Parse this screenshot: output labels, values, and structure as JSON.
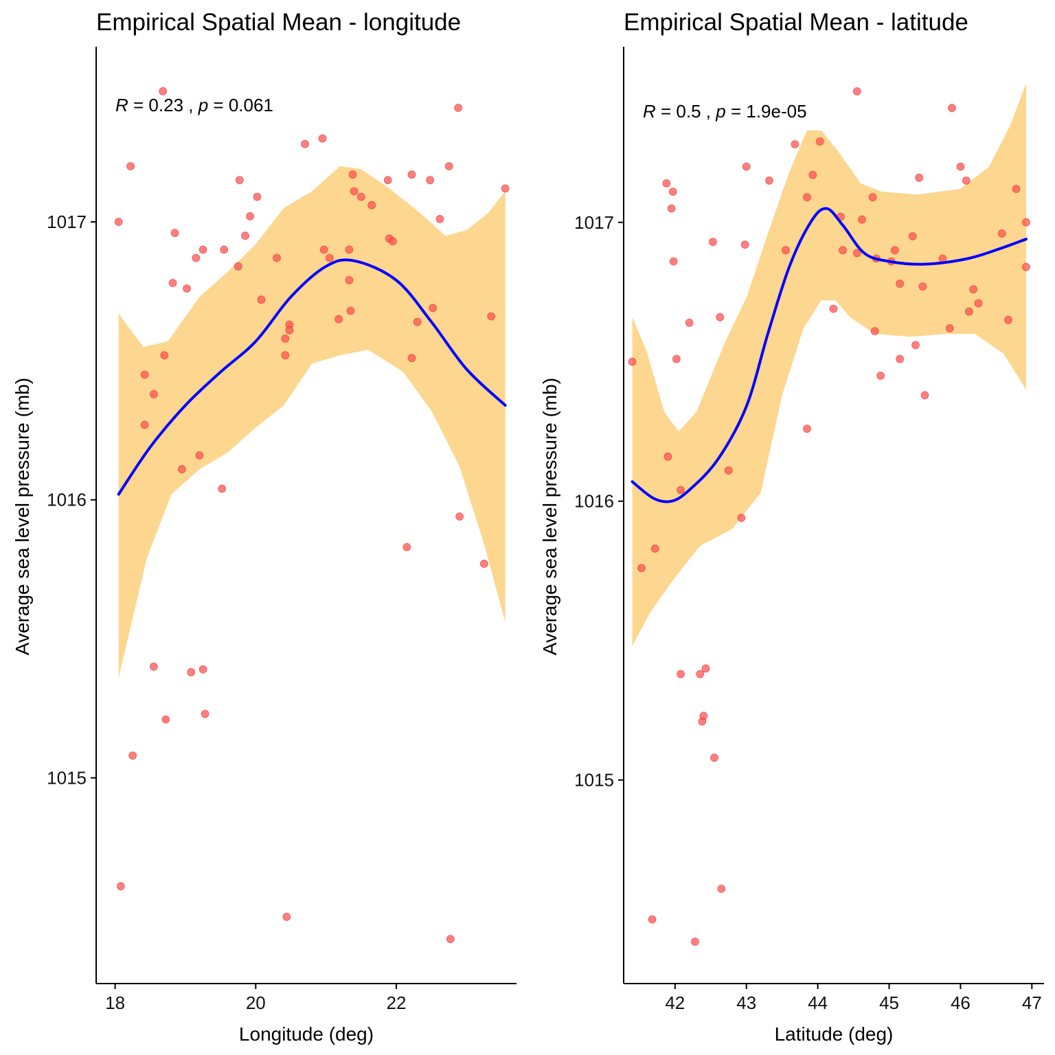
{
  "chart_data": [
    {
      "type": "scatter",
      "title": "Empirical Spatial Mean - longitude",
      "xlabel": "Longitude (deg)",
      "ylabel": "Average sea level pressure (mb)",
      "xlim": [
        17.73,
        23.71
      ],
      "ylim": [
        1014.26,
        1017.63
      ],
      "xticks": [
        18,
        20,
        22
      ],
      "yticks": [
        1015,
        1016,
        1017
      ],
      "annotation": {
        "r_label": "R",
        "r_value": "= 0.23 ,",
        "p_label": "p",
        "p_value": "= 0.061"
      },
      "colors": {
        "points": "#ff4d4d",
        "smooth_line": "#0000ff",
        "confidence_band": "#fdd68f"
      },
      "points": [
        {
          "x": 18.05,
          "y": 1017.0
        },
        {
          "x": 18.08,
          "y": 1014.61
        },
        {
          "x": 18.22,
          "y": 1017.2
        },
        {
          "x": 18.25,
          "y": 1015.08
        },
        {
          "x": 18.42,
          "y": 1016.45
        },
        {
          "x": 18.42,
          "y": 1016.27
        },
        {
          "x": 18.55,
          "y": 1016.38
        },
        {
          "x": 18.55,
          "y": 1015.4
        },
        {
          "x": 18.68,
          "y": 1017.47
        },
        {
          "x": 18.7,
          "y": 1016.52
        },
        {
          "x": 18.72,
          "y": 1015.21
        },
        {
          "x": 18.82,
          "y": 1016.78
        },
        {
          "x": 18.85,
          "y": 1016.96
        },
        {
          "x": 18.95,
          "y": 1016.11
        },
        {
          "x": 19.02,
          "y": 1016.76
        },
        {
          "x": 19.08,
          "y": 1015.38
        },
        {
          "x": 19.15,
          "y": 1016.87
        },
        {
          "x": 19.2,
          "y": 1016.16
        },
        {
          "x": 19.25,
          "y": 1016.9
        },
        {
          "x": 19.25,
          "y": 1015.39
        },
        {
          "x": 19.28,
          "y": 1015.23
        },
        {
          "x": 19.52,
          "y": 1016.04
        },
        {
          "x": 19.55,
          "y": 1016.9
        },
        {
          "x": 19.75,
          "y": 1016.84
        },
        {
          "x": 19.77,
          "y": 1017.15
        },
        {
          "x": 19.85,
          "y": 1016.95
        },
        {
          "x": 19.92,
          "y": 1017.02
        },
        {
          "x": 20.02,
          "y": 1017.09
        },
        {
          "x": 20.08,
          "y": 1016.72
        },
        {
          "x": 20.3,
          "y": 1016.87
        },
        {
          "x": 20.42,
          "y": 1016.58
        },
        {
          "x": 20.42,
          "y": 1016.52
        },
        {
          "x": 20.44,
          "y": 1014.5
        },
        {
          "x": 20.48,
          "y": 1016.63
        },
        {
          "x": 20.48,
          "y": 1016.61
        },
        {
          "x": 20.7,
          "y": 1017.28
        },
        {
          "x": 20.95,
          "y": 1017.3
        },
        {
          "x": 20.97,
          "y": 1016.9
        },
        {
          "x": 21.05,
          "y": 1016.87
        },
        {
          "x": 21.18,
          "y": 1016.65
        },
        {
          "x": 21.33,
          "y": 1016.9
        },
        {
          "x": 21.33,
          "y": 1016.79
        },
        {
          "x": 21.35,
          "y": 1016.68
        },
        {
          "x": 21.38,
          "y": 1017.17
        },
        {
          "x": 21.4,
          "y": 1017.11
        },
        {
          "x": 21.5,
          "y": 1017.09
        },
        {
          "x": 21.65,
          "y": 1017.06
        },
        {
          "x": 21.88,
          "y": 1017.15
        },
        {
          "x": 21.9,
          "y": 1016.94
        },
        {
          "x": 21.95,
          "y": 1016.93
        },
        {
          "x": 22.15,
          "y": 1015.83
        },
        {
          "x": 22.22,
          "y": 1017.17
        },
        {
          "x": 22.22,
          "y": 1016.51
        },
        {
          "x": 22.3,
          "y": 1016.64
        },
        {
          "x": 22.48,
          "y": 1017.15
        },
        {
          "x": 22.52,
          "y": 1016.69
        },
        {
          "x": 22.62,
          "y": 1017.01
        },
        {
          "x": 22.75,
          "y": 1017.2
        },
        {
          "x": 22.77,
          "y": 1014.42
        },
        {
          "x": 22.88,
          "y": 1017.41
        },
        {
          "x": 22.9,
          "y": 1015.94
        },
        {
          "x": 23.25,
          "y": 1015.77
        },
        {
          "x": 23.35,
          "y": 1016.66
        },
        {
          "x": 23.55,
          "y": 1017.12
        }
      ],
      "smooth_line": [
        {
          "x": 18.05,
          "y": 1016.02
        },
        {
          "x": 18.5,
          "y": 1016.19
        },
        {
          "x": 19.0,
          "y": 1016.34
        },
        {
          "x": 19.5,
          "y": 1016.46
        },
        {
          "x": 20.0,
          "y": 1016.57
        },
        {
          "x": 20.5,
          "y": 1016.73
        },
        {
          "x": 21.0,
          "y": 1016.84
        },
        {
          "x": 21.4,
          "y": 1016.86
        },
        {
          "x": 22.0,
          "y": 1016.79
        },
        {
          "x": 22.5,
          "y": 1016.64
        },
        {
          "x": 23.0,
          "y": 1016.47
        },
        {
          "x": 23.55,
          "y": 1016.34
        }
      ],
      "confidence_upper": [
        {
          "x": 18.05,
          "y": 1016.67
        },
        {
          "x": 18.4,
          "y": 1016.55
        },
        {
          "x": 18.75,
          "y": 1016.57
        },
        {
          "x": 19.2,
          "y": 1016.73
        },
        {
          "x": 19.6,
          "y": 1016.82
        },
        {
          "x": 20.0,
          "y": 1016.92
        },
        {
          "x": 20.4,
          "y": 1017.05
        },
        {
          "x": 20.8,
          "y": 1017.11
        },
        {
          "x": 21.2,
          "y": 1017.2
        },
        {
          "x": 21.5,
          "y": 1017.19
        },
        {
          "x": 21.9,
          "y": 1017.12
        },
        {
          "x": 22.3,
          "y": 1017.04
        },
        {
          "x": 22.7,
          "y": 1016.95
        },
        {
          "x": 23.0,
          "y": 1016.97
        },
        {
          "x": 23.3,
          "y": 1017.03
        },
        {
          "x": 23.55,
          "y": 1017.11
        }
      ],
      "confidence_lower": [
        {
          "x": 23.55,
          "y": 1015.56
        },
        {
          "x": 23.25,
          "y": 1015.84
        },
        {
          "x": 22.9,
          "y": 1016.12
        },
        {
          "x": 22.5,
          "y": 1016.32
        },
        {
          "x": 22.1,
          "y": 1016.46
        },
        {
          "x": 21.6,
          "y": 1016.54
        },
        {
          "x": 21.2,
          "y": 1016.52
        },
        {
          "x": 20.8,
          "y": 1016.49
        },
        {
          "x": 20.4,
          "y": 1016.34
        },
        {
          "x": 20.0,
          "y": 1016.26
        },
        {
          "x": 19.6,
          "y": 1016.17
        },
        {
          "x": 19.2,
          "y": 1016.11
        },
        {
          "x": 18.8,
          "y": 1016.02
        },
        {
          "x": 18.45,
          "y": 1015.79
        },
        {
          "x": 18.05,
          "y": 1015.36
        }
      ]
    },
    {
      "type": "scatter",
      "title": "Empirical Spatial Mean - latitude",
      "xlabel": "Latitude (deg)",
      "ylabel": "Average sea level pressure (mb)",
      "xlim": [
        41.28,
        47.17
      ],
      "ylim": [
        1014.27,
        1017.63
      ],
      "xticks": [
        42,
        43,
        44,
        45,
        46,
        47
      ],
      "yticks": [
        1015,
        1016,
        1017
      ],
      "annotation": {
        "r_label": "R",
        "r_value": "= 0.5 ,",
        "p_label": "p",
        "p_value": "= 1.9e-05"
      },
      "colors": {
        "points": "#ff4d4d",
        "smooth_line": "#0000ff",
        "confidence_band": "#fdd68f"
      },
      "points": [
        {
          "x": 41.4,
          "y": 1016.5
        },
        {
          "x": 41.53,
          "y": 1015.76
        },
        {
          "x": 41.68,
          "y": 1014.5
        },
        {
          "x": 41.72,
          "y": 1015.83
        },
        {
          "x": 41.88,
          "y": 1017.14
        },
        {
          "x": 41.9,
          "y": 1016.16
        },
        {
          "x": 41.95,
          "y": 1017.05
        },
        {
          "x": 41.97,
          "y": 1017.11
        },
        {
          "x": 41.98,
          "y": 1016.86
        },
        {
          "x": 42.02,
          "y": 1016.51
        },
        {
          "x": 42.08,
          "y": 1016.04
        },
        {
          "x": 42.08,
          "y": 1015.38
        },
        {
          "x": 42.2,
          "y": 1016.64
        },
        {
          "x": 42.28,
          "y": 1014.42
        },
        {
          "x": 42.35,
          "y": 1015.38
        },
        {
          "x": 42.38,
          "y": 1015.21
        },
        {
          "x": 42.4,
          "y": 1015.23
        },
        {
          "x": 42.43,
          "y": 1015.4
        },
        {
          "x": 42.53,
          "y": 1016.93
        },
        {
          "x": 42.55,
          "y": 1015.08
        },
        {
          "x": 42.63,
          "y": 1016.66
        },
        {
          "x": 42.65,
          "y": 1014.61
        },
        {
          "x": 42.75,
          "y": 1016.11
        },
        {
          "x": 42.93,
          "y": 1015.94
        },
        {
          "x": 42.98,
          "y": 1016.92
        },
        {
          "x": 43.0,
          "y": 1017.2
        },
        {
          "x": 43.32,
          "y": 1017.15
        },
        {
          "x": 43.55,
          "y": 1016.9
        },
        {
          "x": 43.68,
          "y": 1017.28
        },
        {
          "x": 43.85,
          "y": 1016.26
        },
        {
          "x": 43.85,
          "y": 1017.09
        },
        {
          "x": 43.93,
          "y": 1017.17
        },
        {
          "x": 44.03,
          "y": 1017.29
        },
        {
          "x": 44.22,
          "y": 1016.69
        },
        {
          "x": 44.32,
          "y": 1017.02
        },
        {
          "x": 44.35,
          "y": 1016.9
        },
        {
          "x": 44.55,
          "y": 1016.89
        },
        {
          "x": 44.55,
          "y": 1017.47
        },
        {
          "x": 44.62,
          "y": 1017.01
        },
        {
          "x": 44.77,
          "y": 1017.09
        },
        {
          "x": 44.8,
          "y": 1016.61
        },
        {
          "x": 44.82,
          "y": 1016.87
        },
        {
          "x": 44.88,
          "y": 1016.45
        },
        {
          "x": 45.03,
          "y": 1016.86
        },
        {
          "x": 45.08,
          "y": 1016.9
        },
        {
          "x": 45.15,
          "y": 1016.51
        },
        {
          "x": 45.15,
          "y": 1016.78
        },
        {
          "x": 45.33,
          "y": 1016.95
        },
        {
          "x": 45.37,
          "y": 1016.56
        },
        {
          "x": 45.42,
          "y": 1017.16
        },
        {
          "x": 45.47,
          "y": 1016.77
        },
        {
          "x": 45.5,
          "y": 1016.38
        },
        {
          "x": 45.75,
          "y": 1016.87
        },
        {
          "x": 45.85,
          "y": 1016.62
        },
        {
          "x": 45.88,
          "y": 1017.41
        },
        {
          "x": 46.0,
          "y": 1017.2
        },
        {
          "x": 46.08,
          "y": 1017.15
        },
        {
          "x": 46.12,
          "y": 1016.68
        },
        {
          "x": 46.18,
          "y": 1016.76
        },
        {
          "x": 46.25,
          "y": 1016.71
        },
        {
          "x": 46.58,
          "y": 1016.96
        },
        {
          "x": 46.67,
          "y": 1016.65
        },
        {
          "x": 46.78,
          "y": 1017.12
        },
        {
          "x": 46.92,
          "y": 1017.0
        },
        {
          "x": 46.92,
          "y": 1016.84
        }
      ],
      "smooth_line": [
        {
          "x": 41.4,
          "y": 1016.07
        },
        {
          "x": 41.7,
          "y": 1016.01
        },
        {
          "x": 41.95,
          "y": 1016.0
        },
        {
          "x": 42.2,
          "y": 1016.04
        },
        {
          "x": 42.6,
          "y": 1016.15
        },
        {
          "x": 43.0,
          "y": 1016.34
        },
        {
          "x": 43.3,
          "y": 1016.6
        },
        {
          "x": 43.6,
          "y": 1016.84
        },
        {
          "x": 43.9,
          "y": 1017.0
        },
        {
          "x": 44.12,
          "y": 1017.05
        },
        {
          "x": 44.35,
          "y": 1016.99
        },
        {
          "x": 44.65,
          "y": 1016.89
        },
        {
          "x": 45.0,
          "y": 1016.86
        },
        {
          "x": 45.5,
          "y": 1016.85
        },
        {
          "x": 46.1,
          "y": 1016.87
        },
        {
          "x": 46.6,
          "y": 1016.91
        },
        {
          "x": 46.92,
          "y": 1016.94
        }
      ],
      "confidence_upper": [
        {
          "x": 41.4,
          "y": 1016.66
        },
        {
          "x": 41.6,
          "y": 1016.54
        },
        {
          "x": 41.85,
          "y": 1016.32
        },
        {
          "x": 42.05,
          "y": 1016.25
        },
        {
          "x": 42.3,
          "y": 1016.32
        },
        {
          "x": 42.7,
          "y": 1016.57
        },
        {
          "x": 43.0,
          "y": 1016.73
        },
        {
          "x": 43.3,
          "y": 1016.96
        },
        {
          "x": 43.6,
          "y": 1017.18
        },
        {
          "x": 43.85,
          "y": 1017.33
        },
        {
          "x": 44.05,
          "y": 1017.33
        },
        {
          "x": 44.3,
          "y": 1017.25
        },
        {
          "x": 44.6,
          "y": 1017.14
        },
        {
          "x": 44.9,
          "y": 1017.11
        },
        {
          "x": 45.4,
          "y": 1017.1
        },
        {
          "x": 46.0,
          "y": 1017.12
        },
        {
          "x": 46.4,
          "y": 1017.2
        },
        {
          "x": 46.7,
          "y": 1017.35
        },
        {
          "x": 46.92,
          "y": 1017.5
        }
      ],
      "confidence_lower": [
        {
          "x": 46.92,
          "y": 1016.4
        },
        {
          "x": 46.6,
          "y": 1016.53
        },
        {
          "x": 46.2,
          "y": 1016.6
        },
        {
          "x": 45.8,
          "y": 1016.6
        },
        {
          "x": 45.3,
          "y": 1016.59
        },
        {
          "x": 44.8,
          "y": 1016.6
        },
        {
          "x": 44.45,
          "y": 1016.66
        },
        {
          "x": 44.25,
          "y": 1016.72
        },
        {
          "x": 44.05,
          "y": 1016.72
        },
        {
          "x": 43.8,
          "y": 1016.62
        },
        {
          "x": 43.5,
          "y": 1016.38
        },
        {
          "x": 43.2,
          "y": 1016.03
        },
        {
          "x": 42.8,
          "y": 1015.9
        },
        {
          "x": 42.35,
          "y": 1015.84
        },
        {
          "x": 41.95,
          "y": 1015.71
        },
        {
          "x": 41.65,
          "y": 1015.6
        },
        {
          "x": 41.4,
          "y": 1015.48
        }
      ]
    }
  ]
}
